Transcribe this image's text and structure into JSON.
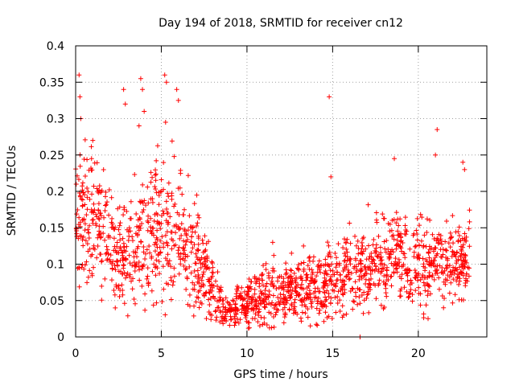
{
  "chart_data": {
    "type": "scatter",
    "title": "Day 194 of 2018, SRMTID for receiver cn12",
    "xlabel": "GPS time / hours",
    "ylabel": "SRMTID / TECUs",
    "xlim": [
      0,
      24
    ],
    "ylim": [
      0,
      0.4
    ],
    "grid": true,
    "marker": "+",
    "color": "#ff0000",
    "x_ticks": [
      0,
      5,
      10,
      15,
      20
    ],
    "x_tick_labels": [
      "0",
      "5",
      "10",
      "15",
      "20"
    ],
    "y_ticks": [
      0,
      0.05,
      0.1,
      0.15,
      0.2,
      0.25,
      0.3,
      0.35,
      0.4
    ],
    "y_tick_labels": [
      "0",
      "0.05",
      "0.1",
      "0.15",
      "0.2",
      "0.25",
      "0.3",
      "0.35",
      "0.4"
    ],
    "x_range_of_data": [
      0,
      23
    ],
    "profile_hours": [
      0,
      1,
      2,
      3,
      4,
      5,
      6,
      7,
      8,
      9,
      10,
      11,
      12,
      13,
      14,
      15,
      16,
      17,
      18,
      19,
      20,
      21,
      22,
      23
    ],
    "profile_mean": [
      0.16,
      0.17,
      0.13,
      0.11,
      0.14,
      0.15,
      0.14,
      0.12,
      0.06,
      0.035,
      0.05,
      0.055,
      0.06,
      0.065,
      0.065,
      0.08,
      0.09,
      0.095,
      0.1,
      0.11,
      0.1,
      0.1,
      0.1,
      0.11
    ],
    "profile_spread": [
      0.04,
      0.045,
      0.035,
      0.035,
      0.045,
      0.05,
      0.045,
      0.04,
      0.02,
      0.012,
      0.018,
      0.02,
      0.02,
      0.022,
      0.022,
      0.025,
      0.025,
      0.028,
      0.03,
      0.03,
      0.03,
      0.03,
      0.03,
      0.03
    ],
    "outliers": [
      {
        "x": 0.2,
        "y": 0.36
      },
      {
        "x": 0.25,
        "y": 0.33
      },
      {
        "x": 0.3,
        "y": 0.3
      },
      {
        "x": 1.0,
        "y": 0.27
      },
      {
        "x": 2.8,
        "y": 0.34
      },
      {
        "x": 2.9,
        "y": 0.32
      },
      {
        "x": 3.8,
        "y": 0.355
      },
      {
        "x": 3.9,
        "y": 0.34
      },
      {
        "x": 4.0,
        "y": 0.31
      },
      {
        "x": 3.7,
        "y": 0.29
      },
      {
        "x": 5.2,
        "y": 0.36
      },
      {
        "x": 5.3,
        "y": 0.35
      },
      {
        "x": 5.9,
        "y": 0.34
      },
      {
        "x": 6.0,
        "y": 0.325
      },
      {
        "x": 5.25,
        "y": 0.295
      },
      {
        "x": 14.8,
        "y": 0.33
      },
      {
        "x": 14.9,
        "y": 0.22
      },
      {
        "x": 16.6,
        "y": 0.0
      },
      {
        "x": 21.1,
        "y": 0.285
      },
      {
        "x": 21.0,
        "y": 0.25
      },
      {
        "x": 18.6,
        "y": 0.245
      },
      {
        "x": 22.6,
        "y": 0.24
      },
      {
        "x": 22.7,
        "y": 0.23
      },
      {
        "x": 11.5,
        "y": 0.13
      },
      {
        "x": 13.3,
        "y": 0.125
      },
      {
        "x": 12.6,
        "y": 0.115
      }
    ]
  }
}
